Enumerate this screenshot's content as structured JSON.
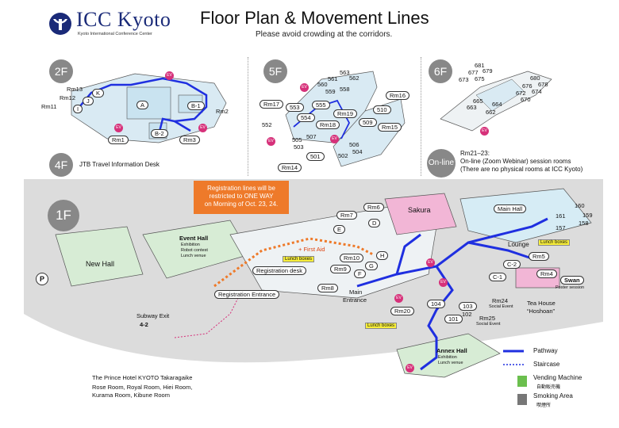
{
  "header": {
    "logo_text": "ICC Kyoto",
    "logo_sub": "Kyoto International Conference Center",
    "title": "Floor Plan & Movement Lines",
    "subtitle": "Please avoid crowding at the corridors."
  },
  "floors": {
    "f2": {
      "badge": "2F",
      "rooms": [
        "Rm13",
        "Rm12",
        "Rm11",
        "K",
        "J",
        "I",
        "A",
        "B-1",
        "B-2",
        "Rm2",
        "Rm1",
        "Rm3"
      ]
    },
    "f5": {
      "badge": "5F",
      "rooms": [
        "563",
        "561",
        "562",
        "560",
        "559",
        "558",
        "553",
        "555",
        "554",
        "552",
        "Rm17",
        "Rm19",
        "Rm18",
        "Rm16",
        "510",
        "509",
        "Rm15",
        "505",
        "503",
        "507",
        "506",
        "504",
        "502",
        "501",
        "Rm14"
      ]
    },
    "f6": {
      "badge": "6F",
      "rooms": [
        "681",
        "677",
        "679",
        "673",
        "675",
        "680",
        "676",
        "678",
        "674",
        "672",
        "670",
        "665",
        "664",
        "663",
        "662"
      ]
    },
    "f4": {
      "badge": "4F",
      "text": "JTB Travel Information Desk"
    },
    "online": {
      "badge": "On-line",
      "line1": "Rm21–23:",
      "line2": "On-line (Zoom Webinar) session rooms",
      "line3": "(There are no physical rooms at ICC Kyoto)"
    },
    "f1": {
      "badge": "1F"
    }
  },
  "ev_label": "EV",
  "notice": {
    "line1": "Registration lines will be",
    "line2": "restricted to ONE WAY",
    "line3": "on Morning of Oct. 23, 24."
  },
  "first_floor": {
    "new_hall": "New Hall",
    "event_hall": "Event Hall",
    "event_hall_sub1": "Exhibition",
    "event_hall_sub2": "Robot contest",
    "event_hall_sub3": "Lunch venue",
    "sakura": "Sakura",
    "main_hall": "Main Hall",
    "lounge": "Lounge",
    "swan": "Swan",
    "swan_sub": "Poster session",
    "tea_house1": "Tea House",
    "tea_house2": "“Hoshoan”",
    "annex_hall": "Annex Hall",
    "annex_sub1": "Exhibition",
    "annex_sub2": "Lunch venue",
    "registration_desk": "Registration desk",
    "registration_entrance": "Registration Entrance",
    "main_entrance1": "Main",
    "main_entrance2": "Entrance",
    "subway_exit": "Subway Exit",
    "subway_num": "4-2",
    "first_aid": "+ First Aid",
    "lunch_boxes": "Lunch boxes",
    "rm24": "Rm24",
    "rm24_sub": "Social Event",
    "rm25": "Rm25",
    "rm25_sub": "Social Event",
    "parking": "P",
    "rooms": [
      "Rm7",
      "Rm6",
      "E",
      "D",
      "Rm10",
      "Rm9",
      "H",
      "G",
      "F",
      "Rm8",
      "Rm20",
      "104",
      "103",
      "102",
      "101",
      "C-2",
      "C-1",
      "Rm5",
      "Rm4",
      "160",
      "159",
      "158",
      "161",
      "157"
    ],
    "prince_hotel": "The Prince Hotel KYOTO Takaragaike",
    "prince_rooms1": "Rose Room, Royal Room, Hiei Room,",
    "prince_rooms2": "Kurama Room, Kibune Room"
  },
  "legend": {
    "pathway": "Pathway",
    "staircase": "Staircase",
    "vending": "Vending Machine",
    "vending_jp": "自動販売機",
    "smoking": "Smoking Area",
    "smoking_jp": "喫煙所"
  },
  "colors": {
    "pathway": "#1f2fe0",
    "notice": "#ee7a2a",
    "ev": "#d6317a",
    "lunch": "#f7ee3a",
    "sakura": "#f2b6d6",
    "hall": "#d6ecf5",
    "event": "#d7ecd5"
  }
}
